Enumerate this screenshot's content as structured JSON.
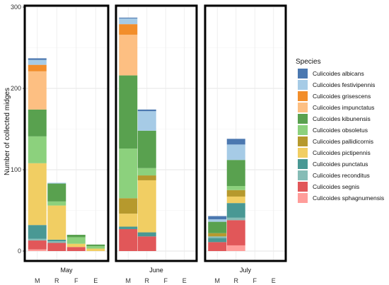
{
  "chart_data": {
    "type": "bar",
    "stacked": true,
    "ylabel": "Number of collected midges",
    "ylim": [
      0,
      300
    ],
    "yticks": [
      0,
      100,
      200,
      300
    ],
    "categories": [
      "M",
      "R",
      "F",
      "E"
    ],
    "facets": [
      "May",
      "June",
      "July"
    ],
    "legend": {
      "title": "Species",
      "position": "right"
    },
    "grid": true,
    "species": [
      {
        "name": "Culicoides albicans",
        "color": "#4b78b0"
      },
      {
        "name": "Culicoides festivipennis",
        "color": "#a6cbe6"
      },
      {
        "name": "Culicoides grisescens",
        "color": "#f28e2b"
      },
      {
        "name": "Culicoides impunctatus",
        "color": "#fdbf82"
      },
      {
        "name": "Culicoides kibunensis",
        "color": "#59a14f"
      },
      {
        "name": "Culicoides obsoletus",
        "color": "#8cd17d"
      },
      {
        "name": "Culicoides pallidicornis",
        "color": "#b6992d"
      },
      {
        "name": "Culicoides pictipennis",
        "color": "#f1ce63"
      },
      {
        "name": "Culicoides punctatus",
        "color": "#499894"
      },
      {
        "name": "Culicoides reconditus",
        "color": "#86bcb6"
      },
      {
        "name": "Culicoides segnis",
        "color": "#e15759"
      },
      {
        "name": "Culicoides sphagnumensis",
        "color": "#ff9d9a"
      }
    ],
    "series": [
      {
        "facet": "May",
        "category": "M",
        "stack": [
          {
            "species": "Culicoides sphagnumensis",
            "value": 2
          },
          {
            "species": "Culicoides segnis",
            "value": 11
          },
          {
            "species": "Culicoides reconditus",
            "value": 2
          },
          {
            "species": "Culicoides punctatus",
            "value": 17
          },
          {
            "species": "Culicoides pictipennis",
            "value": 76
          },
          {
            "species": "Culicoides obsoletus",
            "value": 33
          },
          {
            "species": "Culicoides kibunensis",
            "value": 33
          },
          {
            "species": "Culicoides impunctatus",
            "value": 47
          },
          {
            "species": "Culicoides grisescens",
            "value": 8
          },
          {
            "species": "Culicoides festivipennis",
            "value": 6
          },
          {
            "species": "Culicoides albicans",
            "value": 2
          }
        ]
      },
      {
        "facet": "May",
        "category": "R",
        "stack": [
          {
            "species": "Culicoides segnis",
            "value": 10
          },
          {
            "species": "Culicoides reconditus",
            "value": 2
          },
          {
            "species": "Culicoides punctatus",
            "value": 2
          },
          {
            "species": "Culicoides pictipennis",
            "value": 42
          },
          {
            "species": "Culicoides obsoletus",
            "value": 5
          },
          {
            "species": "Culicoides kibunensis",
            "value": 22
          },
          {
            "species": "Culicoides festivipennis",
            "value": 1
          }
        ]
      },
      {
        "facet": "May",
        "category": "F",
        "stack": [
          {
            "species": "Culicoides segnis",
            "value": 5
          },
          {
            "species": "Culicoides pictipennis",
            "value": 4
          },
          {
            "species": "Culicoides obsoletus",
            "value": 8
          },
          {
            "species": "Culicoides kibunensis",
            "value": 3
          }
        ]
      },
      {
        "facet": "May",
        "category": "E",
        "stack": [
          {
            "species": "Culicoides pictipennis",
            "value": 3
          },
          {
            "species": "Culicoides obsoletus",
            "value": 3
          },
          {
            "species": "Culicoides kibunensis",
            "value": 2
          }
        ]
      },
      {
        "facet": "June",
        "category": "M",
        "stack": [
          {
            "species": "Culicoides segnis",
            "value": 27
          },
          {
            "species": "Culicoides punctatus",
            "value": 3
          },
          {
            "species": "Culicoides pictipennis",
            "value": 16
          },
          {
            "species": "Culicoides pallidicornis",
            "value": 19
          },
          {
            "species": "Culicoides obsoletus",
            "value": 61
          },
          {
            "species": "Culicoides kibunensis",
            "value": 90
          },
          {
            "species": "Culicoides impunctatus",
            "value": 50
          },
          {
            "species": "Culicoides grisescens",
            "value": 13
          },
          {
            "species": "Culicoides festivipennis",
            "value": 7
          },
          {
            "species": "Culicoides albicans",
            "value": 1
          }
        ]
      },
      {
        "facet": "June",
        "category": "R",
        "stack": [
          {
            "species": "Culicoides segnis",
            "value": 18
          },
          {
            "species": "Culicoides punctatus",
            "value": 5
          },
          {
            "species": "Culicoides pictipennis",
            "value": 64
          },
          {
            "species": "Culicoides pallidicornis",
            "value": 6
          },
          {
            "species": "Culicoides obsoletus",
            "value": 9
          },
          {
            "species": "Culicoides kibunensis",
            "value": 46
          },
          {
            "species": "Culicoides festivipennis",
            "value": 24
          },
          {
            "species": "Culicoides albicans",
            "value": 2
          }
        ]
      },
      {
        "facet": "June",
        "category": "F",
        "stack": []
      },
      {
        "facet": "June",
        "category": "E",
        "stack": []
      },
      {
        "facet": "July",
        "category": "M",
        "stack": [
          {
            "species": "Culicoides segnis",
            "value": 11
          },
          {
            "species": "Culicoides punctatus",
            "value": 5
          },
          {
            "species": "Culicoides reconditus",
            "value": 2
          },
          {
            "species": "Culicoides pallidicornis",
            "value": 4
          },
          {
            "species": "Culicoides kibunensis",
            "value": 14
          },
          {
            "species": "Culicoides festivipennis",
            "value": 3
          },
          {
            "species": "Culicoides albicans",
            "value": 4
          }
        ]
      },
      {
        "facet": "July",
        "category": "R",
        "stack": [
          {
            "species": "Culicoides sphagnumensis",
            "value": 7
          },
          {
            "species": "Culicoides segnis",
            "value": 31
          },
          {
            "species": "Culicoides reconditus",
            "value": 3
          },
          {
            "species": "Culicoides punctatus",
            "value": 18
          },
          {
            "species": "Culicoides pictipennis",
            "value": 8
          },
          {
            "species": "Culicoides pallidicornis",
            "value": 8
          },
          {
            "species": "Culicoides obsoletus",
            "value": 5
          },
          {
            "species": "Culicoides kibunensis",
            "value": 32
          },
          {
            "species": "Culicoides festivipennis",
            "value": 19
          },
          {
            "species": "Culicoides albicans",
            "value": 7
          }
        ]
      },
      {
        "facet": "July",
        "category": "F",
        "stack": []
      },
      {
        "facet": "July",
        "category": "E",
        "stack": []
      }
    ]
  }
}
